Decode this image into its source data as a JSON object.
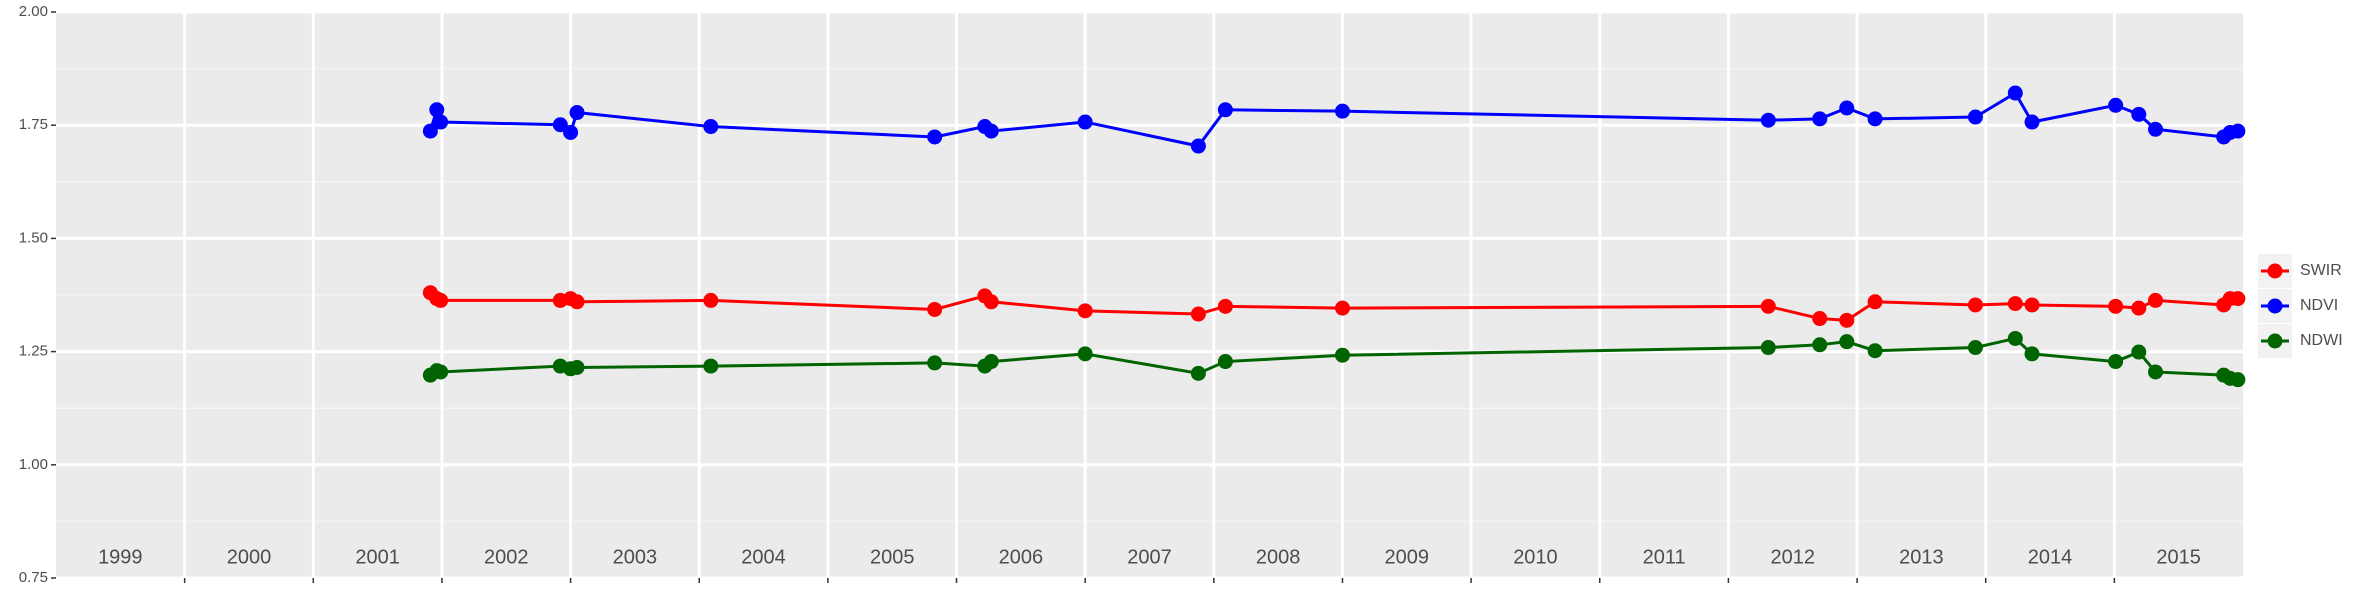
{
  "chart_data": {
    "type": "line",
    "x": [
      2001.91,
      2001.96,
      2001.99,
      2002.92,
      2003.0,
      2003.05,
      2004.09,
      2005.83,
      2006.22,
      2006.27,
      2007.0,
      2007.88,
      2008.09,
      2009.0,
      2012.31,
      2012.71,
      2012.92,
      2013.14,
      2013.92,
      2014.23,
      2014.36,
      2015.01,
      2015.19,
      2015.32,
      2015.85,
      2015.9,
      2015.96
    ],
    "series": [
      {
        "name": "SWIR",
        "color": "#ff0000",
        "values": [
          1.38,
          1.367,
          1.363,
          1.363,
          1.367,
          1.36,
          1.363,
          1.343,
          1.373,
          1.36,
          1.34,
          1.333,
          1.35,
          1.346,
          1.35,
          1.323,
          1.319,
          1.36,
          1.353,
          1.356,
          1.353,
          1.35,
          1.346,
          1.363,
          1.353,
          1.367,
          1.367
        ]
      },
      {
        "name": "NDVI",
        "color": "#0000ff",
        "values": [
          1.737,
          1.784,
          1.757,
          1.751,
          1.734,
          1.778,
          1.747,
          1.724,
          1.747,
          1.737,
          1.757,
          1.704,
          1.784,
          1.781,
          1.761,
          1.764,
          1.788,
          1.764,
          1.768,
          1.821,
          1.757,
          1.794,
          1.774,
          1.741,
          1.724,
          1.734,
          1.737
        ]
      },
      {
        "name": "NDWI",
        "color": "#006400",
        "values": [
          1.198,
          1.208,
          1.205,
          1.218,
          1.212,
          1.215,
          1.218,
          1.225,
          1.218,
          1.228,
          1.245,
          1.202,
          1.228,
          1.242,
          1.259,
          1.265,
          1.272,
          1.252,
          1.259,
          1.279,
          1.245,
          1.228,
          1.249,
          1.205,
          1.198,
          1.191,
          1.188
        ]
      }
    ],
    "xlim": [
      1999,
      2016
    ],
    "xticks": [
      2000,
      2001,
      2002,
      2003,
      2004,
      2005,
      2006,
      2007,
      2008,
      2009,
      2010,
      2011,
      2012,
      2013,
      2014,
      2015
    ],
    "ylim": [
      0.75,
      2.0
    ],
    "yticks": [
      {
        "value": 0.75,
        "label": "0.75"
      },
      {
        "value": 1.0,
        "label": "1.00"
      },
      {
        "value": 1.25,
        "label": "1.25"
      },
      {
        "value": 1.5,
        "label": "1.50"
      },
      {
        "value": 1.75,
        "label": "1.75"
      },
      {
        "value": 2.0,
        "label": "2.00"
      }
    ],
    "y_minor_ticks": [
      0.875,
      1.125,
      1.375,
      1.625,
      1.875
    ],
    "year_labels": [
      {
        "value": 1999.5,
        "label": "1999"
      },
      {
        "value": 2000.5,
        "label": "2000"
      },
      {
        "value": 2001.5,
        "label": "2001"
      },
      {
        "value": 2002.5,
        "label": "2002"
      },
      {
        "value": 2003.5,
        "label": "2003"
      },
      {
        "value": 2004.5,
        "label": "2004"
      },
      {
        "value": 2005.5,
        "label": "2005"
      },
      {
        "value": 2006.5,
        "label": "2006"
      },
      {
        "value": 2007.5,
        "label": "2007"
      },
      {
        "value": 2008.5,
        "label": "2008"
      },
      {
        "value": 2009.5,
        "label": "2009"
      },
      {
        "value": 2010.5,
        "label": "2010"
      },
      {
        "value": 2011.5,
        "label": "2011"
      },
      {
        "value": 2012.5,
        "label": "2012"
      },
      {
        "value": 2013.5,
        "label": "2013"
      },
      {
        "value": 2014.5,
        "label": "2014"
      },
      {
        "value": 2015.5,
        "label": "2015"
      }
    ],
    "grid": true,
    "legend": "right"
  }
}
